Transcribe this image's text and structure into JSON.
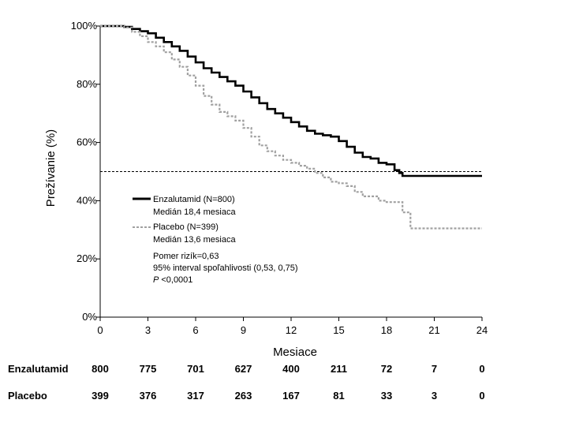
{
  "chart_data": {
    "type": "line",
    "xlabel": "Mesiace",
    "ylabel": "Prežívanie (%)",
    "xlim": [
      0,
      24
    ],
    "ylim": [
      0,
      100
    ],
    "x_ticks": [
      "0",
      "3",
      "6",
      "9",
      "12",
      "15",
      "18",
      "21",
      "24"
    ],
    "y_ticks": [
      "0%",
      "20%",
      "40%",
      "60%",
      "80%",
      "100%"
    ],
    "reference_line": 50,
    "series": [
      {
        "name": "Enzalutamid (N=800)",
        "style": "solid",
        "color": "#000000",
        "x": [
          0,
          1,
          1.5,
          2,
          2.5,
          3,
          3.5,
          4,
          4.5,
          5,
          5.5,
          6,
          6.5,
          7,
          7.5,
          8,
          8.5,
          9,
          9.5,
          10,
          10.5,
          11,
          11.5,
          12,
          12.5,
          13,
          13.5,
          14,
          14.5,
          15,
          15.5,
          16,
          16.5,
          17,
          17.5,
          18,
          18.5,
          18.8,
          19,
          20,
          21,
          22,
          23,
          24
        ],
        "y": [
          100,
          100,
          99.7,
          99,
          98.2,
          97.5,
          96,
          94.5,
          93,
          91.5,
          89.5,
          87.5,
          85.5,
          84,
          82.5,
          81,
          79.5,
          77.5,
          75.5,
          73.5,
          71.5,
          70,
          68.5,
          67,
          65.5,
          64,
          63,
          62.5,
          62,
          60.5,
          58.5,
          56.5,
          55,
          54.5,
          53,
          52.5,
          50.5,
          49.5,
          48.5,
          48.5,
          48.5,
          48.5,
          48.5,
          48.5
        ]
      },
      {
        "name": "Placebo (N=399)",
        "style": "dashed",
        "color": "#a0a0a0",
        "x": [
          0,
          1,
          1.5,
          2,
          2.5,
          3,
          3.5,
          4,
          4.5,
          5,
          5.5,
          6,
          6.5,
          7,
          7.5,
          8,
          8.5,
          9,
          9.5,
          10,
          10.5,
          11,
          11.5,
          12,
          12.5,
          13,
          13.5,
          14,
          14.5,
          15,
          15.5,
          16,
          16.5,
          17,
          17.5,
          18,
          18.5,
          19,
          19.5,
          20,
          21,
          22,
          23,
          24
        ],
        "y": [
          100,
          100,
          99.5,
          98,
          96.5,
          94.5,
          93,
          91,
          88.5,
          86,
          83,
          79.5,
          76,
          73,
          70.5,
          69,
          67.5,
          65,
          62,
          59,
          57,
          55.5,
          54,
          53,
          52,
          51,
          49.5,
          48,
          46.5,
          46,
          45,
          43,
          41.5,
          41.5,
          40,
          39.5,
          39.5,
          36,
          30.5,
          30.5,
          30.5,
          30.5,
          30.5,
          30.5
        ]
      }
    ],
    "legend": {
      "position": "center-left",
      "entries": [
        {
          "line1": "Enzalutamid (N=800)",
          "line2": "Medián 18,4 mesiaca"
        },
        {
          "line1": "Placebo (N=399)",
          "line2": "Medián 13,6 mesiaca"
        }
      ],
      "stats": [
        "Pomer rizík=0,63",
        "95% interval spoľahlivosti (0,53, 0,75)",
        "<0,0001"
      ],
      "p_label": "P"
    },
    "at_risk": {
      "times": [
        0,
        3,
        6,
        9,
        12,
        15,
        18,
        21,
        24
      ],
      "rows": [
        {
          "label": "Enzalutamid",
          "values": [
            "800",
            "775",
            "701",
            "627",
            "400",
            "211",
            "72",
            "7",
            "0"
          ]
        },
        {
          "label": "Placebo",
          "values": [
            "399",
            "376",
            "317",
            "263",
            "167",
            "81",
            "33",
            "3",
            "0"
          ]
        }
      ]
    }
  }
}
